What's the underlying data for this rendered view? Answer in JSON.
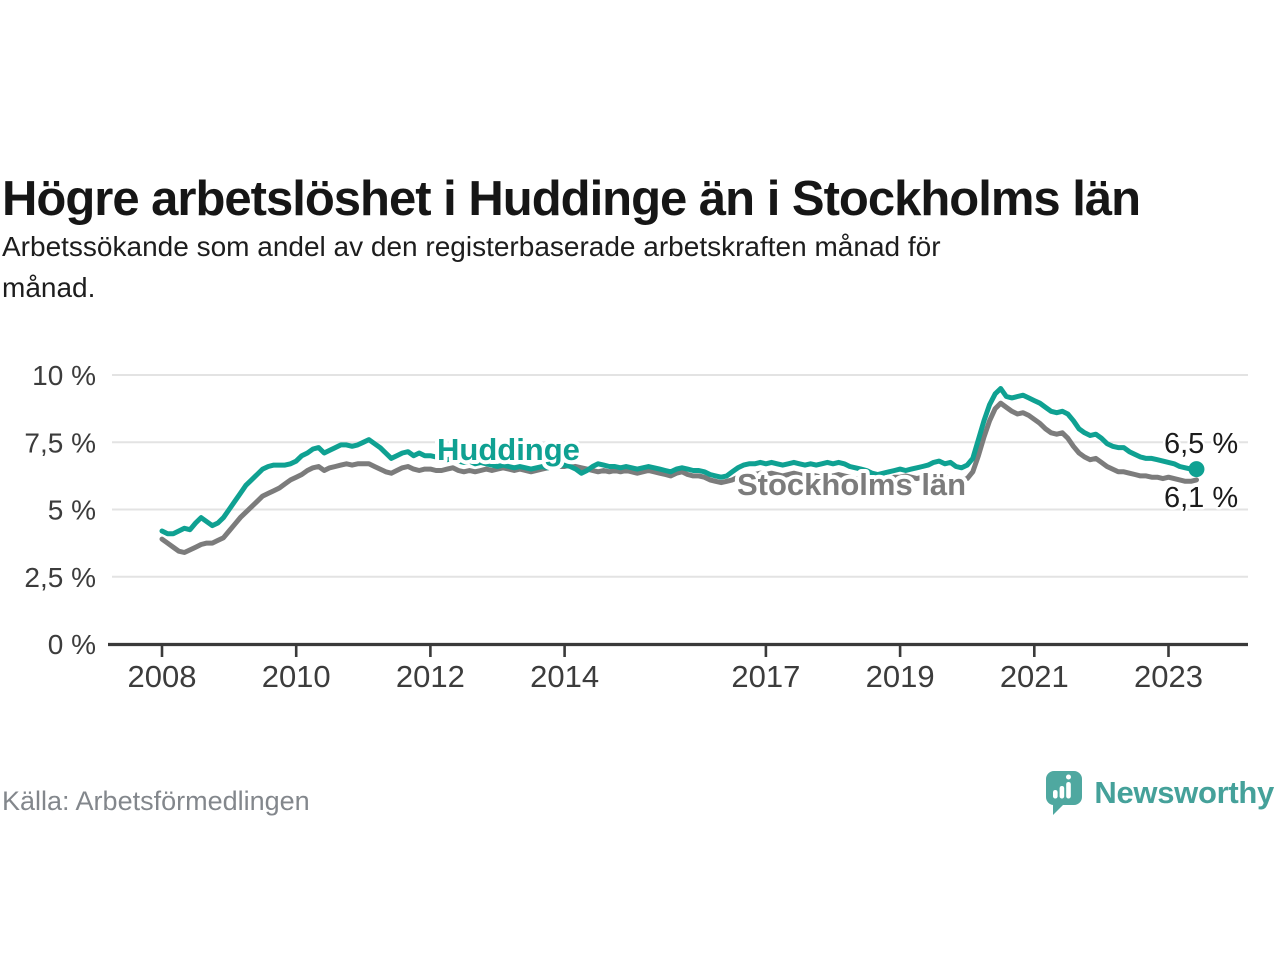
{
  "page": {
    "title": "Högre arbetslöshet i Huddinge än i Stockholms län",
    "subtitle_lines": [
      "Arbetssökande som andel av den registerbaserade arbetskraften månad för",
      "månad."
    ],
    "source": "Källa: Arbetsförmedlingen",
    "brand_name": "Newsworthy"
  },
  "colors": {
    "huddinge": "#0fa192",
    "stockholm": "#7c7c7c",
    "grid": "#e3e3e3",
    "axis": "#3a3a3a",
    "tick_text": "#3c3c3c",
    "value_label": "#1b1b1b",
    "logo_teal": "#4fa8a0",
    "background": "#ffffff"
  },
  "chart_data": {
    "type": "line",
    "title": "Högre arbetslöshet i Huddinge än i Stockholms län",
    "xlabel": "",
    "ylabel": "",
    "x_unit": "month",
    "x_start": "2008-01",
    "x_end": "2023-06",
    "ylim": [
      0,
      10
    ],
    "grid": "horizontal",
    "legend_position": "inline-labels",
    "yticks": [
      {
        "value": 0,
        "label": "0 %"
      },
      {
        "value": 2.5,
        "label": "2,5 %"
      },
      {
        "value": 5,
        "label": "5 %"
      },
      {
        "value": 7.5,
        "label": "7,5 %"
      },
      {
        "value": 10,
        "label": "10 %"
      }
    ],
    "xticks": [
      {
        "value": 2008,
        "label": "2008"
      },
      {
        "value": 2010,
        "label": "2010"
      },
      {
        "value": 2012,
        "label": "2012"
      },
      {
        "value": 2014,
        "label": "2014"
      },
      {
        "value": 2017,
        "label": "2017"
      },
      {
        "value": 2019,
        "label": "2019"
      },
      {
        "value": 2021,
        "label": "2021"
      },
      {
        "value": 2023,
        "label": "2023"
      }
    ],
    "series": [
      {
        "name": "Huddinge",
        "color": "#0fa192",
        "last_value_label": "6,5 %",
        "end_marker": true,
        "values": [
          4.2,
          4.1,
          4.1,
          4.2,
          4.3,
          4.25,
          4.5,
          4.7,
          4.55,
          4.4,
          4.5,
          4.7,
          5.0,
          5.3,
          5.6,
          5.9,
          6.1,
          6.3,
          6.5,
          6.6,
          6.65,
          6.65,
          6.65,
          6.7,
          6.8,
          7.0,
          7.1,
          7.25,
          7.3,
          7.1,
          7.2,
          7.3,
          7.4,
          7.4,
          7.35,
          7.4,
          7.5,
          7.6,
          7.45,
          7.3,
          7.1,
          6.9,
          7.0,
          7.1,
          7.15,
          7.0,
          7.1,
          7.0,
          7.0,
          6.95,
          6.9,
          6.85,
          6.9,
          6.8,
          6.75,
          6.8,
          6.7,
          6.75,
          6.7,
          6.65,
          6.6,
          6.65,
          6.6,
          6.55,
          6.6,
          6.55,
          6.5,
          6.55,
          6.6,
          6.55,
          6.6,
          6.65,
          6.65,
          6.6,
          6.5,
          6.35,
          6.45,
          6.6,
          6.7,
          6.65,
          6.6,
          6.6,
          6.55,
          6.6,
          6.55,
          6.5,
          6.55,
          6.6,
          6.55,
          6.5,
          6.45,
          6.4,
          6.5,
          6.55,
          6.5,
          6.45,
          6.45,
          6.4,
          6.3,
          6.25,
          6.2,
          6.25,
          6.4,
          6.55,
          6.65,
          6.7,
          6.7,
          6.75,
          6.7,
          6.75,
          6.7,
          6.65,
          6.7,
          6.75,
          6.7,
          6.65,
          6.7,
          6.65,
          6.7,
          6.75,
          6.7,
          6.75,
          6.7,
          6.6,
          6.55,
          6.5,
          6.45,
          6.35,
          6.3,
          6.35,
          6.4,
          6.45,
          6.5,
          6.45,
          6.5,
          6.55,
          6.6,
          6.65,
          6.75,
          6.8,
          6.7,
          6.75,
          6.6,
          6.55,
          6.65,
          6.9,
          7.6,
          8.3,
          8.9,
          9.3,
          9.5,
          9.2,
          9.15,
          9.2,
          9.25,
          9.15,
          9.05,
          8.95,
          8.8,
          8.65,
          8.6,
          8.65,
          8.55,
          8.3,
          8.0,
          7.85,
          7.75,
          7.8,
          7.65,
          7.45,
          7.35,
          7.3,
          7.3,
          7.15,
          7.05,
          6.95,
          6.9,
          6.9,
          6.85,
          6.8,
          6.75,
          6.7,
          6.6,
          6.55,
          6.5,
          6.5
        ]
      },
      {
        "name": "Stockholms län",
        "color": "#7c7c7c",
        "last_value_label": "6,1 %",
        "end_marker": false,
        "values": [
          3.9,
          3.75,
          3.6,
          3.45,
          3.4,
          3.5,
          3.6,
          3.7,
          3.75,
          3.75,
          3.85,
          3.95,
          4.2,
          4.45,
          4.7,
          4.9,
          5.1,
          5.3,
          5.5,
          5.6,
          5.7,
          5.8,
          5.95,
          6.1,
          6.2,
          6.3,
          6.45,
          6.55,
          6.6,
          6.45,
          6.55,
          6.6,
          6.65,
          6.7,
          6.65,
          6.7,
          6.7,
          6.7,
          6.6,
          6.5,
          6.4,
          6.35,
          6.45,
          6.55,
          6.6,
          6.5,
          6.45,
          6.5,
          6.5,
          6.45,
          6.45,
          6.5,
          6.55,
          6.45,
          6.4,
          6.45,
          6.4,
          6.45,
          6.5,
          6.45,
          6.5,
          6.55,
          6.5,
          6.45,
          6.5,
          6.45,
          6.4,
          6.45,
          6.5,
          6.55,
          6.6,
          6.6,
          6.6,
          6.65,
          6.6,
          6.55,
          6.5,
          6.45,
          6.4,
          6.45,
          6.4,
          6.45,
          6.4,
          6.45,
          6.4,
          6.35,
          6.4,
          6.45,
          6.4,
          6.35,
          6.3,
          6.25,
          6.35,
          6.4,
          6.3,
          6.25,
          6.25,
          6.2,
          6.1,
          6.05,
          6.0,
          6.05,
          6.1,
          6.2,
          6.25,
          6.3,
          6.3,
          6.35,
          6.3,
          6.35,
          6.3,
          6.25,
          6.3,
          6.35,
          6.3,
          6.25,
          6.3,
          6.25,
          6.2,
          6.25,
          6.25,
          6.3,
          6.25,
          6.2,
          6.15,
          6.1,
          6.05,
          6.0,
          6.05,
          6.1,
          6.15,
          6.2,
          6.2,
          6.25,
          6.2,
          6.15,
          6.2,
          6.15,
          6.1,
          6.15,
          6.2,
          6.15,
          6.05,
          6.1,
          6.15,
          6.4,
          7.0,
          7.7,
          8.3,
          8.75,
          8.95,
          8.8,
          8.65,
          8.55,
          8.6,
          8.5,
          8.35,
          8.2,
          8.0,
          7.85,
          7.8,
          7.85,
          7.65,
          7.35,
          7.1,
          6.95,
          6.85,
          6.9,
          6.75,
          6.6,
          6.5,
          6.4,
          6.4,
          6.35,
          6.3,
          6.25,
          6.25,
          6.2,
          6.2,
          6.15,
          6.2,
          6.15,
          6.1,
          6.05,
          6.05,
          6.1
        ]
      }
    ]
  }
}
